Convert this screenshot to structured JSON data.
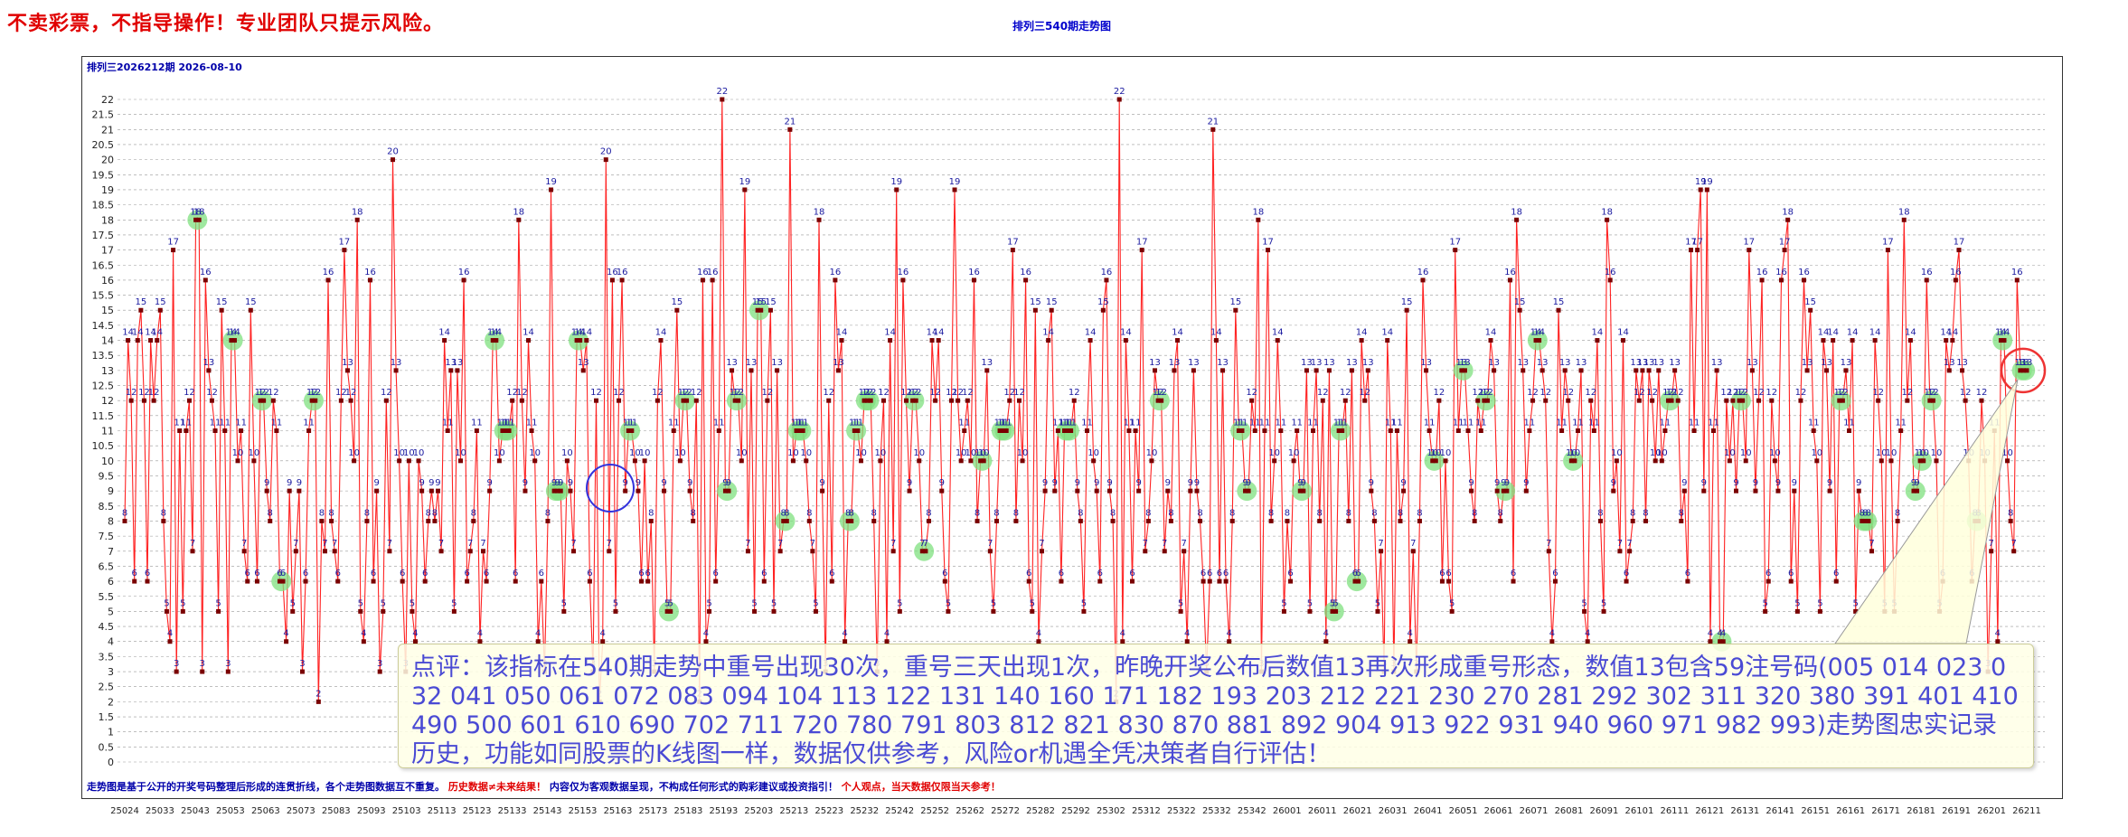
{
  "banner": "不卖彩票，不指导操作！专业团队只提示风险。",
  "footer": {
    "part1": "走势图是基于公开的开奖号码整理后形成的连贯折线，各个走势图数据互不重复。",
    "part2": "历史数据≠未来结果！",
    "part3": "内容仅为客观数据呈现，不构成任何形式的购彩建议或投资指引！",
    "part4": "个人观点，当天数据仅限当天参考！"
  },
  "comment": "点评：该指标在540期走势中重号出现30次，重号三天出现1次，昨晚开奖公布后数值13再次形成重号形态，数值13包含59注号码(005 014 023 032 041 050 061 072 083 094 104 113 122 131 140 160 171 182 193 203 212 221 230 270 281 292 302 311 320 380 391 401 410 490 500 601 610 690 702 711 720 780 791 803 812 821 830 870 881 892 904 913 922 931 940 960 971 982 993)走势图忠实记录历史，功能如同股票的K线图一样，数据仅供参考，风险or机遇全凭决策者自行评估！",
  "colors": {
    "line": "#ff2222",
    "point": "#7a0000",
    "label": "#1a1aa0",
    "highlight": "#7fe07f",
    "ring_blue": "#3333dd",
    "ring_red": "#ee3333",
    "grid": "#999999"
  },
  "chart_data": {
    "type": "line",
    "title": "排列三540期走势图",
    "subtitle": "排列三2026212期  2026-08-10",
    "ylim": [
      0,
      22
    ],
    "ystep": 0.5,
    "grid": "horizontal-dashed",
    "x_ticks": [
      "25024",
      "25033",
      "25043",
      "25053",
      "25063",
      "25073",
      "25083",
      "25093",
      "25103",
      "25113",
      "25123",
      "25133",
      "25143",
      "25153",
      "25163",
      "25173",
      "25183",
      "25193",
      "25203",
      "25213",
      "25223",
      "25232",
      "25242",
      "25252",
      "25262",
      "25272",
      "25282",
      "25292",
      "25302",
      "25312",
      "25322",
      "25332",
      "25342",
      "26001",
      "26011",
      "26021",
      "26031",
      "26041",
      "26051",
      "26061",
      "26071",
      "26081",
      "26091",
      "26101",
      "26111",
      "26121",
      "26131",
      "26141",
      "26151",
      "26161",
      "26171",
      "26181",
      "26191",
      "26201",
      "26211"
    ],
    "values": [
      8,
      14,
      12,
      6,
      14,
      15,
      12,
      6,
      14,
      12,
      14,
      15,
      8,
      5,
      4,
      17,
      3,
      11,
      5,
      11,
      12,
      7,
      18,
      18,
      3,
      16,
      13,
      12,
      11,
      5,
      15,
      11,
      3,
      14,
      14,
      10,
      11,
      7,
      6,
      15,
      10,
      6,
      12,
      12,
      9,
      8,
      12,
      11,
      6,
      6,
      4,
      9,
      5,
      7,
      9,
      3,
      6,
      11,
      12,
      12,
      2,
      8,
      7,
      16,
      8,
      7,
      6,
      12,
      17,
      13,
      12,
      10,
      18,
      5,
      4,
      8,
      16,
      6,
      9,
      3,
      5,
      12,
      7,
      20,
      13,
      10,
      6,
      3,
      10,
      5,
      4,
      10,
      9,
      6,
      8,
      9,
      8,
      9,
      7,
      14,
      11,
      13,
      5,
      13,
      10,
      16,
      6,
      7,
      8,
      11,
      4,
      7,
      6,
      9,
      14,
      14,
      10,
      11,
      11,
      11,
      12,
      6,
      18,
      12,
      9,
      14,
      11,
      10,
      4,
      6,
      3,
      8,
      19,
      9,
      9,
      9,
      5,
      10,
      9,
      7,
      14,
      14,
      13,
      14,
      6,
      3,
      12,
      2,
      4,
      20,
      7,
      16,
      5,
      12,
      16,
      9,
      11,
      11,
      10,
      9,
      6,
      10,
      6,
      8,
      3,
      12,
      14,
      9,
      5,
      5,
      11,
      15,
      10,
      12,
      12,
      9,
      8,
      12,
      2,
      16,
      4,
      5,
      16,
      6,
      11,
      22,
      9,
      9,
      13,
      12,
      12,
      10,
      19,
      7,
      13,
      5,
      15,
      15,
      6,
      12,
      15,
      5,
      13,
      7,
      8,
      8,
      21,
      10,
      11,
      11,
      11,
      10,
      8,
      7,
      5,
      18,
      9,
      3,
      12,
      6,
      16,
      13,
      14,
      4,
      8,
      8,
      11,
      11,
      10,
      12,
      12,
      12,
      8,
      3,
      10,
      12,
      4,
      14,
      7,
      19,
      5,
      16,
      12,
      9,
      12,
      12,
      10,
      7,
      7,
      8,
      14,
      12,
      14,
      9,
      6,
      5,
      12,
      19,
      12,
      10,
      11,
      12,
      10,
      16,
      8,
      10,
      10,
      13,
      7,
      5,
      8,
      11,
      11,
      11,
      12,
      17,
      8,
      12,
      10,
      16,
      6,
      5,
      15,
      4,
      7,
      9,
      14,
      15,
      9,
      11,
      6,
      11,
      11,
      11,
      12,
      9,
      8,
      5,
      11,
      14,
      10,
      9,
      6,
      15,
      16,
      9,
      8,
      2,
      22,
      4,
      14,
      11,
      6,
      11,
      9,
      17,
      7,
      8,
      10,
      13,
      12,
      12,
      7,
      9,
      8,
      13,
      14,
      5,
      7,
      4,
      9,
      13,
      9,
      8,
      6,
      3,
      6,
      21,
      14,
      6,
      13,
      6,
      4,
      8,
      15,
      11,
      11,
      9,
      9,
      12,
      11,
      18,
      3,
      11,
      17,
      8,
      10,
      14,
      11,
      5,
      8,
      6,
      10,
      11,
      9,
      9,
      13,
      5,
      11,
      13,
      8,
      12,
      4,
      13,
      5,
      5,
      11,
      11,
      12,
      8,
      13,
      6,
      6,
      14,
      12,
      13,
      9,
      8,
      5,
      7,
      3,
      14,
      11,
      3,
      11,
      8,
      9,
      15,
      4,
      7,
      3,
      8,
      16,
      13,
      11,
      10,
      10,
      12,
      6,
      10,
      6,
      5,
      17,
      11,
      13,
      13,
      11,
      9,
      8,
      12,
      11,
      12,
      12,
      14,
      13,
      9,
      8,
      9,
      9,
      16,
      6,
      18,
      15,
      13,
      9,
      11,
      12,
      14,
      14,
      13,
      12,
      7,
      4,
      6,
      15,
      11,
      13,
      12,
      10,
      10,
      11,
      13,
      5,
      4,
      12,
      11,
      14,
      8,
      5,
      18,
      16,
      9,
      10,
      7,
      14,
      6,
      7,
      8,
      13,
      12,
      13,
      8,
      13,
      12,
      10,
      13,
      10,
      11,
      12,
      12,
      13,
      12,
      8,
      9,
      6,
      17,
      11,
      17,
      19,
      9,
      19,
      4,
      11,
      13,
      4,
      4,
      12,
      10,
      12,
      9,
      12,
      12,
      10,
      17,
      13,
      9,
      12,
      16,
      5,
      6,
      12,
      10,
      9,
      16,
      17,
      18,
      6,
      9,
      5,
      12,
      16,
      13,
      15,
      11,
      10,
      5,
      14,
      13,
      9,
      14,
      6,
      12,
      12,
      13,
      11,
      14,
      5,
      9,
      8,
      8,
      8,
      7,
      14,
      12,
      10,
      5,
      17,
      10,
      5,
      8,
      11,
      18,
      12,
      14,
      9,
      9,
      10,
      10,
      16,
      12,
      12,
      10,
      5,
      6,
      14,
      13,
      14,
      16,
      17,
      13,
      12,
      10,
      6,
      8,
      8,
      12,
      10,
      3,
      7,
      11,
      4,
      14,
      14,
      10,
      8,
      7,
      16,
      13,
      13,
      13
    ]
  }
}
